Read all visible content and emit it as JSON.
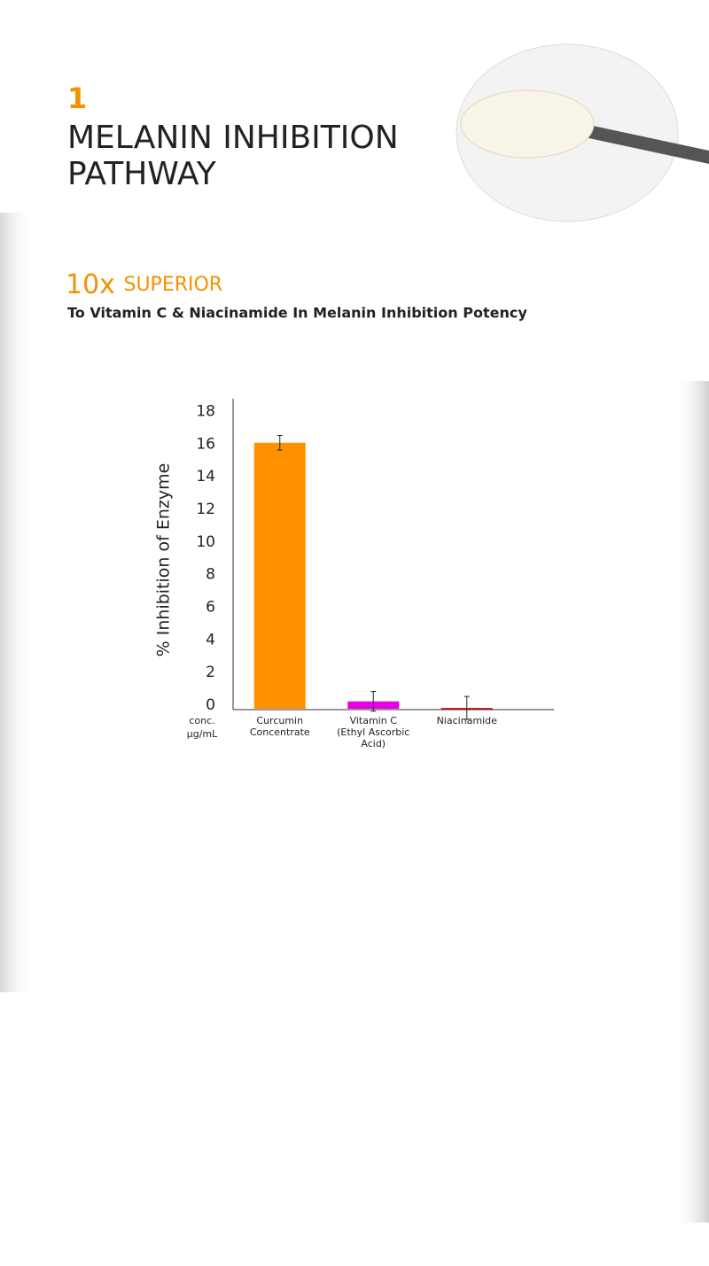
{
  "header": {
    "number": "1",
    "title_lines": [
      "MELANIN INHIBITION",
      "PATHWAY"
    ]
  },
  "headline": {
    "emphasis": "10x",
    "rest": "SUPERIOR",
    "subtitle": "To Vitamin C & Niacinamide In Melanin Inhibition Potency"
  },
  "chart_data": {
    "type": "bar",
    "y_label": "% Inhibition of Enzyme",
    "x_label": [
      "conc.",
      "µg/mL"
    ],
    "categories": [
      [
        "Curcumin",
        "Concentrate"
      ],
      [
        "Vitamin C",
        "(Ethyl Ascorbic",
        "Acid)"
      ],
      [
        "Niacinamide"
      ]
    ],
    "values": [
      16.3,
      0.45,
      0.05
    ],
    "errors": [
      0.45,
      0.6,
      0.7
    ],
    "colors": [
      "#ff9100",
      "#e600e6",
      "#d01010"
    ],
    "ylim": [
      0,
      19
    ],
    "yticks": [
      0,
      2,
      4,
      6,
      8,
      10,
      12,
      14,
      16,
      18
    ],
    "grid": false
  }
}
